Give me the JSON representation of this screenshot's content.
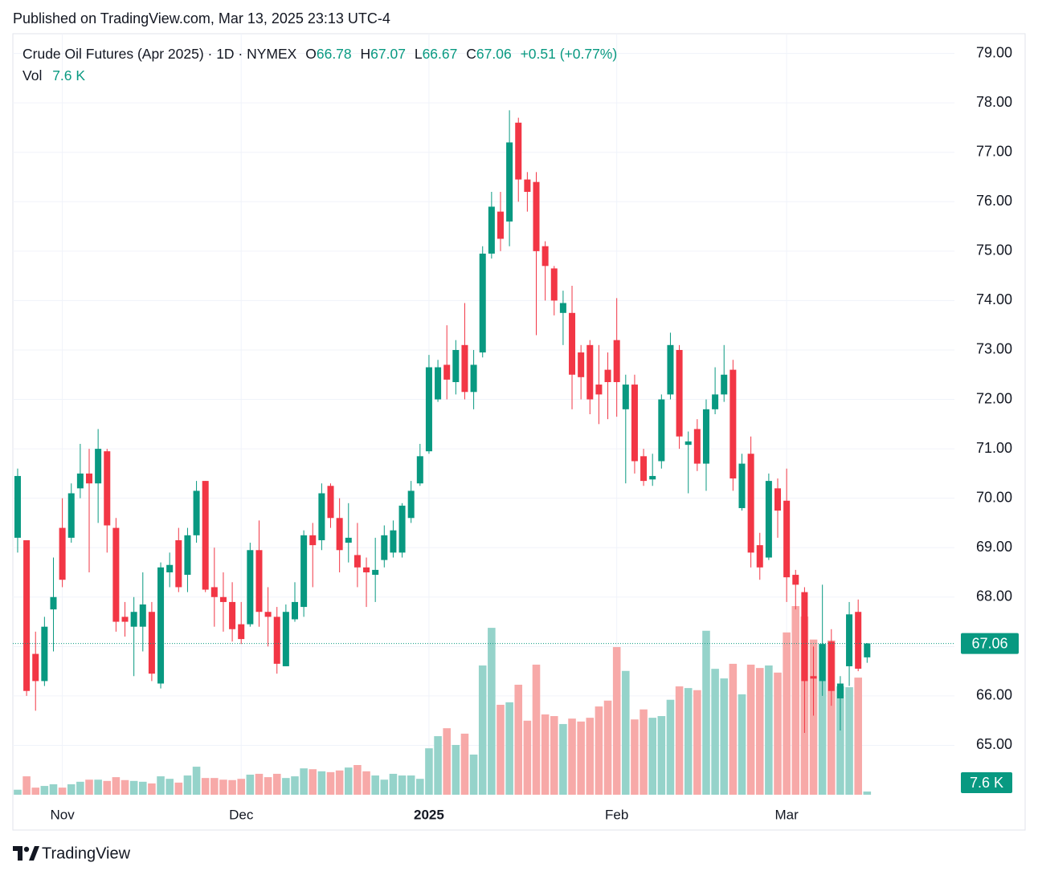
{
  "published": "Published on TradingView.com, Mar 13, 2025 23:13 UTC-4",
  "footer": "TradingView",
  "chart_data": {
    "type": "candlestick",
    "title": "Crude Oil Futures (Apr 2025) · 1D · NYMEX",
    "header_labels": [
      "O",
      "H",
      "L",
      "C"
    ],
    "change": "+0.51 (+0.77%)",
    "categories": [
      null,
      null,
      null,
      null,
      null,
      "Nov",
      null,
      null,
      null,
      null,
      null,
      null,
      null,
      null,
      null,
      null,
      null,
      null,
      null,
      null,
      null,
      null,
      null,
      null,
      null,
      "Dec",
      null,
      null,
      null,
      null,
      null,
      null,
      null,
      null,
      null,
      null,
      null,
      null,
      null,
      null,
      null,
      null,
      null,
      null,
      null,
      null,
      "2025",
      null,
      null,
      null,
      null,
      null,
      null,
      null,
      null,
      null,
      null,
      null,
      null,
      null,
      null,
      null,
      null,
      null,
      null,
      null,
      null,
      "Feb",
      null,
      null,
      null,
      null,
      null,
      null,
      null,
      null,
      null,
      null,
      null,
      null,
      null,
      null,
      null,
      null,
      null,
      null,
      "Mar",
      null,
      null,
      null,
      null,
      null,
      null,
      null,
      null,
      null
    ],
    "open": [
      69.2,
      69.15,
      66.85,
      66.3,
      67.75,
      69.4,
      69.2,
      70.2,
      70.5,
      70.3,
      70.95,
      69.4,
      67.6,
      67.4,
      67.4,
      67.7,
      66.25,
      68.5,
      69.15,
      68.45,
      69.25,
      70.35,
      68.2,
      68.0,
      67.9,
      67.45,
      67.45,
      68.95,
      67.7,
      67.6,
      66.6,
      67.55,
      67.8,
      69.25,
      69.15,
      70.25,
      69.6,
      69.1,
      68.85,
      68.6,
      68.45,
      68.75,
      68.9,
      68.9,
      69.6,
      70.3,
      70.95,
      72.0,
      72.7,
      72.35,
      73.1,
      72.15,
      72.95,
      74.95,
      75.8,
      75.6,
      77.6,
      76.45,
      76.4,
      75.1,
      74.65,
      73.75,
      73.75,
      72.95,
      73.1,
      72.3,
      72.6,
      73.2,
      71.8,
      72.3,
      70.85,
      70.38,
      70.75,
      72.1,
      73.0,
      71.08,
      71.4,
      70.7,
      71.8,
      72.1,
      72.6,
      69.8,
      70.9,
      69.05,
      68.8,
      70.2,
      69.95,
      68.45,
      68.1,
      66.4,
      66.3,
      67.1,
      65.95,
      66.6,
      67.7,
      66.78
    ],
    "high": [
      70.6,
      69.15,
      67.3,
      67.6,
      68.8,
      70.0,
      70.3,
      71.1,
      71.0,
      71.4,
      71.0,
      69.6,
      67.9,
      68.0,
      68.5,
      67.9,
      68.7,
      68.9,
      69.4,
      69.4,
      70.35,
      70.35,
      69.0,
      68.5,
      68.3,
      67.9,
      69.1,
      69.55,
      68.2,
      67.8,
      67.85,
      68.3,
      69.35,
      69.5,
      70.3,
      70.3,
      70.0,
      69.9,
      69.5,
      68.8,
      69.2,
      69.45,
      69.55,
      69.9,
      70.35,
      71.1,
      72.9,
      72.8,
      73.5,
      73.2,
      73.95,
      73.0,
      75.1,
      76.2,
      76.2,
      77.85,
      77.7,
      76.6,
      76.6,
      75.2,
      74.7,
      74.2,
      74.3,
      73.1,
      73.2,
      73.1,
      72.95,
      74.05,
      72.5,
      72.5,
      71.0,
      70.9,
      72.1,
      73.35,
      73.1,
      71.35,
      71.6,
      72.0,
      72.65,
      73.1,
      72.8,
      70.9,
      71.25,
      69.3,
      70.5,
      70.4,
      70.6,
      68.55,
      68.2,
      67.0,
      68.25,
      67.35,
      66.4,
      67.9,
      67.95,
      67.07
    ],
    "low": [
      68.9,
      66.0,
      65.7,
      66.2,
      66.9,
      68.2,
      69.1,
      70.0,
      68.5,
      69.5,
      68.9,
      67.3,
      67.2,
      66.4,
      66.9,
      66.3,
      66.15,
      68.2,
      68.1,
      68.1,
      69.1,
      68.1,
      67.4,
      67.3,
      67.1,
      67.05,
      67.4,
      67.4,
      67.0,
      66.45,
      66.6,
      67.5,
      67.6,
      68.2,
      68.95,
      69.4,
      68.5,
      68.7,
      68.2,
      67.8,
      67.9,
      68.6,
      68.8,
      68.8,
      69.5,
      70.25,
      70.9,
      71.95,
      72.0,
      72.1,
      72.0,
      71.8,
      72.85,
      74.85,
      75.0,
      75.1,
      76.0,
      75.8,
      73.3,
      74.0,
      73.7,
      73.1,
      71.8,
      72.0,
      71.7,
      71.5,
      71.6,
      71.65,
      70.3,
      70.5,
      70.25,
      70.25,
      70.6,
      72.0,
      71.0,
      70.1,
      70.55,
      70.15,
      71.7,
      71.95,
      70.15,
      69.75,
      68.6,
      68.35,
      68.75,
      69.2,
      67.9,
      67.75,
      65.25,
      65.6,
      66.0,
      65.8,
      65.3,
      66.2,
      66.5,
      66.67
    ],
    "close": [
      70.45,
      66.1,
      66.3,
      67.4,
      68.0,
      68.35,
      70.1,
      70.5,
      70.3,
      71.0,
      69.45,
      67.5,
      67.5,
      67.7,
      67.85,
      66.45,
      68.6,
      68.65,
      68.2,
      69.25,
      70.15,
      68.15,
      68.0,
      67.9,
      67.35,
      67.15,
      68.95,
      67.7,
      67.6,
      66.65,
      67.7,
      67.9,
      69.25,
      69.05,
      70.1,
      69.6,
      68.95,
      69.2,
      68.6,
      68.5,
      68.55,
      69.25,
      69.35,
      69.85,
      70.15,
      70.85,
      72.65,
      72.65,
      72.4,
      73.0,
      72.15,
      72.7,
      74.95,
      75.9,
      75.25,
      77.2,
      76.45,
      76.2,
      75.0,
      74.7,
      74.0,
      73.95,
      72.5,
      72.45,
      72.0,
      72.1,
      72.35,
      72.35,
      72.3,
      70.75,
      70.35,
      70.45,
      72.0,
      73.1,
      71.25,
      71.15,
      70.7,
      71.8,
      72.1,
      72.5,
      70.4,
      70.7,
      68.9,
      68.6,
      70.35,
      69.75,
      68.4,
      68.25,
      66.3,
      66.35,
      67.05,
      66.1,
      66.25,
      67.65,
      66.55,
      67.06
    ],
    "volume": {
      "name": "Vol",
      "values": [
        12,
        44,
        17,
        21,
        25,
        17,
        25,
        31,
        36,
        36,
        33,
        42,
        35,
        33,
        31,
        27,
        44,
        38,
        29,
        46,
        67,
        40,
        40,
        36,
        35,
        38,
        48,
        50,
        42,
        50,
        40,
        44,
        63,
        61,
        56,
        54,
        58,
        65,
        71,
        56,
        46,
        36,
        50,
        46,
        46,
        38,
        111,
        140,
        159,
        119,
        146,
        96,
        309,
        399,
        215,
        221,
        263,
        177,
        311,
        192,
        188,
        169,
        182,
        175,
        184,
        211,
        225,
        353,
        296,
        180,
        204,
        184,
        188,
        227,
        259,
        255,
        250,
        392,
        301,
        278,
        313,
        240,
        311,
        303,
        309,
        292,
        388,
        451,
        426,
        371,
        361,
        369,
        259,
        257,
        280,
        7.6
      ],
      "value_labels": [
        null,
        null,
        null,
        null,
        null,
        null,
        null,
        null,
        null,
        null,
        null,
        null,
        null,
        null,
        null,
        null,
        null,
        null,
        null,
        null,
        null,
        null,
        null,
        null,
        null,
        null,
        null,
        null,
        null,
        null,
        null,
        null,
        null,
        null,
        null,
        null,
        null,
        null,
        null,
        null,
        null,
        null,
        null,
        null,
        null,
        null,
        null,
        null,
        null,
        null,
        null,
        null,
        null,
        null,
        null,
        null,
        null,
        null,
        null,
        null,
        null,
        null,
        null,
        null,
        null,
        null,
        null,
        null,
        null,
        null,
        null,
        null,
        null,
        null,
        null,
        null,
        null,
        null,
        null,
        null,
        null,
        null,
        null,
        null,
        null,
        null,
        null,
        null,
        null,
        null,
        null,
        null,
        null,
        null,
        null,
        "7.6 K"
      ]
    },
    "up_color": "#089981",
    "down_color": "#f23645",
    "volume_up_color": "#95d3ca",
    "volume_down_color": "#f7a9a8",
    "ylim": [
      64.0,
      79.4
    ],
    "yticks": [
      {
        "value": 65,
        "label": "65.00"
      },
      {
        "value": 66,
        "label": "66.00"
      },
      {
        "value": 67,
        "label": "67.00"
      },
      {
        "value": 68,
        "label": "68.00"
      },
      {
        "value": 69,
        "label": "69.00"
      },
      {
        "value": 70,
        "label": "70.00"
      },
      {
        "value": 71,
        "label": "71.00"
      },
      {
        "value": 72,
        "label": "72.00"
      },
      {
        "value": 73,
        "label": "73.00"
      },
      {
        "value": 74,
        "label": "74.00"
      },
      {
        "value": 75,
        "label": "75.00"
      },
      {
        "value": 76,
        "label": "76.00"
      },
      {
        "value": 77,
        "label": "77.00"
      },
      {
        "value": 78,
        "label": "78.00"
      },
      {
        "value": 79,
        "label": "79.00"
      }
    ],
    "grid": true
  }
}
